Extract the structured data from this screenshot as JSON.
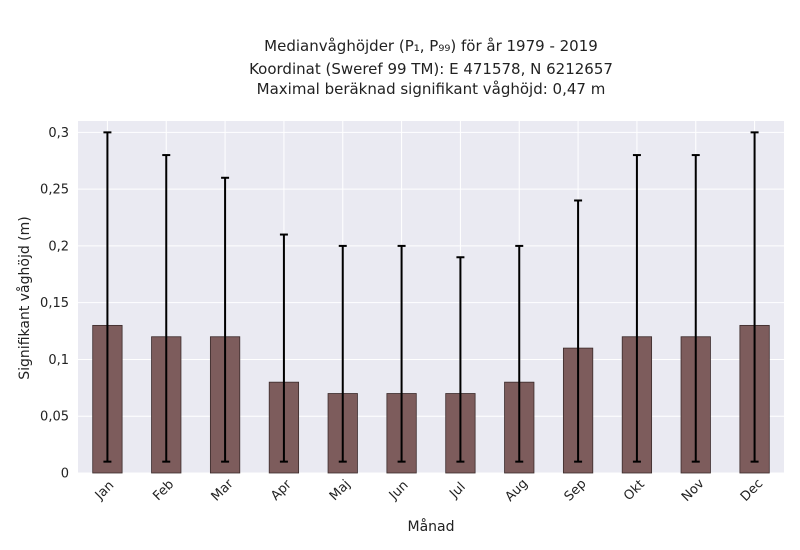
{
  "chart_data": {
    "type": "bar",
    "title_lines": [
      "Medianvåghöjder (P₁, P₉₉) för år 1979 - 2019",
      "Koordinat (Sweref 99 TM): E 471578, N 6212657",
      "Maximal beräknad signifikant våghöjd: 0,47 m"
    ],
    "xlabel": "Månad",
    "ylabel": "Signifikant våghöjd (m)",
    "categories": [
      "Jan",
      "Feb",
      "Mar",
      "Apr",
      "Maj",
      "Jun",
      "Jul",
      "Aug",
      "Sep",
      "Okt",
      "Nov",
      "Dec"
    ],
    "values": [
      0.13,
      0.12,
      0.12,
      0.08,
      0.07,
      0.07,
      0.07,
      0.08,
      0.11,
      0.12,
      0.12,
      0.13
    ],
    "error_low": [
      0.01,
      0.01,
      0.01,
      0.01,
      0.01,
      0.01,
      0.01,
      0.01,
      0.01,
      0.01,
      0.01,
      0.01
    ],
    "error_high": [
      0.3,
      0.28,
      0.26,
      0.21,
      0.2,
      0.2,
      0.19,
      0.2,
      0.24,
      0.28,
      0.28,
      0.3
    ],
    "ylim": [
      0,
      0.31
    ],
    "yticks": [
      0,
      0.05,
      0.1,
      0.15,
      0.2,
      0.25,
      0.3
    ],
    "ytick_labels": [
      "0",
      "0,05",
      "0,1",
      "0,15",
      "0,2",
      "0,25",
      "0,3"
    ],
    "grid": true,
    "colors": {
      "bar_fill": "#7d5c5c",
      "bar_edge": "#3a2a2a",
      "error_bar": "#000000",
      "plot_background": "#eaeaf2",
      "grid": "#ffffff"
    }
  }
}
